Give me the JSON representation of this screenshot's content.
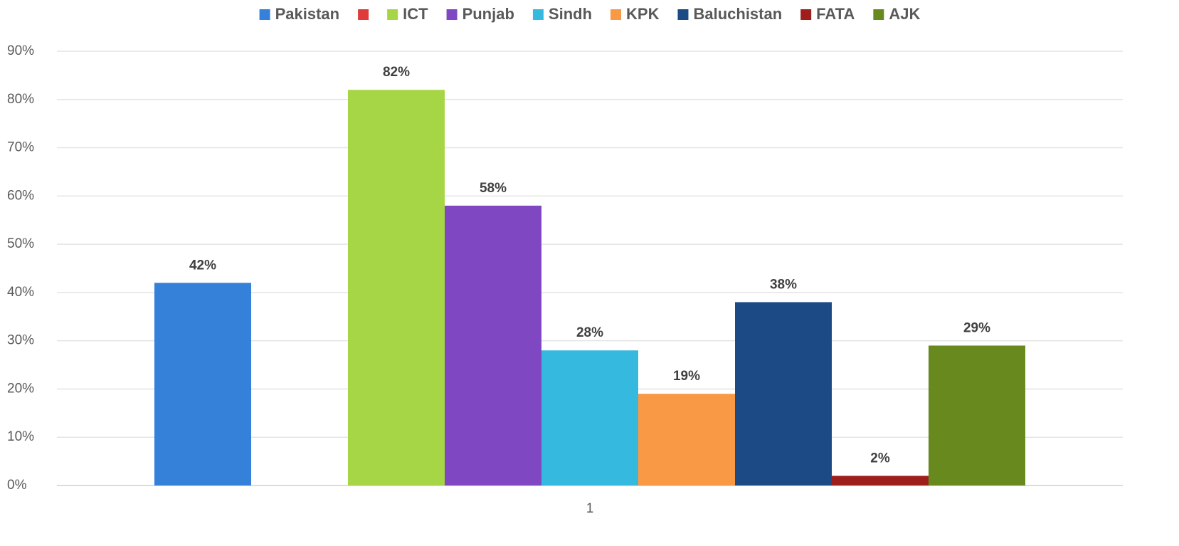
{
  "chart_data": {
    "type": "bar",
    "categories": [
      "1"
    ],
    "series": [
      {
        "name": "Pakistan",
        "color": "#3580d8",
        "values": [
          42
        ],
        "value_labels": [
          "42%"
        ]
      },
      {
        "name": null,
        "color": "#e03a3a",
        "values": [
          null
        ]
      },
      {
        "name": "ICT",
        "color": "#a6d645",
        "values": [
          82
        ],
        "value_labels": [
          "82%"
        ]
      },
      {
        "name": "Punjab",
        "color": "#7f47c2",
        "values": [
          58
        ],
        "value_labels": [
          "58%"
        ]
      },
      {
        "name": "Sindh",
        "color": "#35b9df",
        "values": [
          28
        ],
        "value_labels": [
          "28%"
        ]
      },
      {
        "name": "KPK",
        "color": "#f99845",
        "values": [
          19
        ],
        "value_labels": [
          "19%"
        ]
      },
      {
        "name": "Baluchistan",
        "color": "#1b4a85",
        "values": [
          38
        ],
        "value_labels": [
          "38%"
        ]
      },
      {
        "name": "FATA",
        "color": "#9e1e1e",
        "values": [
          2
        ],
        "value_labels": [
          "2%"
        ]
      },
      {
        "name": "AJK",
        "color": "#68891e",
        "values": [
          29
        ],
        "value_labels": [
          "29%"
        ]
      }
    ],
    "ylim": [
      0,
      90
    ],
    "yticks": [
      {
        "value": 0,
        "label": "0%"
      },
      {
        "value": 10,
        "label": "10%"
      },
      {
        "value": 20,
        "label": "20%"
      },
      {
        "value": 30,
        "label": "30%"
      },
      {
        "value": 40,
        "label": "40%"
      },
      {
        "value": 50,
        "label": "50%"
      },
      {
        "value": 60,
        "label": "60%"
      },
      {
        "value": 70,
        "label": "70%"
      },
      {
        "value": 80,
        "label": "80%"
      },
      {
        "value": 90,
        "label": "90%"
      }
    ],
    "grid": true,
    "legend": "top"
  }
}
